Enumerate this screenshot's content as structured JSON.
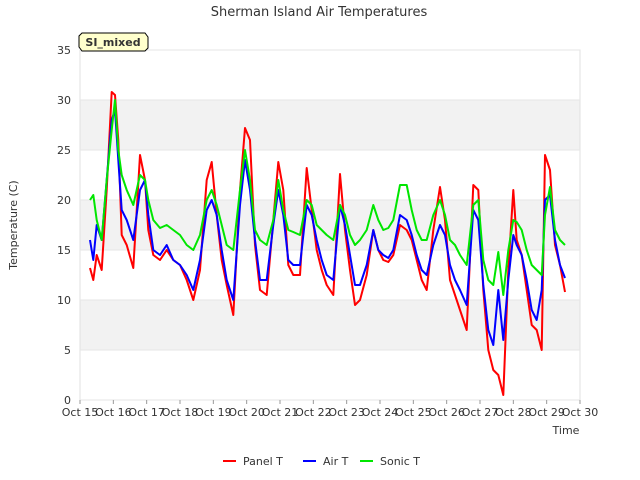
{
  "chart_data": {
    "type": "line",
    "title": "Sherman Island Air Temperatures",
    "xlabel": "Time",
    "ylabel": "Temperature (C)",
    "badge": "SI_mixed",
    "xlim": [
      0,
      15
    ],
    "ylim": [
      0,
      35
    ],
    "x_ticks": [
      "Oct 15",
      "Oct 16",
      "Oct 17",
      "Oct 18",
      "Oct 19",
      "Oct 20",
      "Oct 21",
      "Oct 22",
      "Oct 23",
      "Oct 24",
      "Oct 25",
      "Oct 26",
      "Oct 27",
      "Oct 28",
      "Oct 29",
      "Oct 30"
    ],
    "y_ticks": [
      0,
      5,
      10,
      15,
      20,
      25,
      30,
      35
    ],
    "grid": "horizontal bands",
    "legend_position": "bottom-center",
    "series": [
      {
        "name": "Panel T",
        "color": "#ff0000",
        "x": [
          0.3,
          0.4,
          0.5,
          0.65,
          0.8,
          0.95,
          1.05,
          1.15,
          1.25,
          1.4,
          1.6,
          1.8,
          1.95,
          2.05,
          2.2,
          2.4,
          2.6,
          2.8,
          3.0,
          3.2,
          3.4,
          3.6,
          3.8,
          3.95,
          4.1,
          4.25,
          4.4,
          4.6,
          4.8,
          4.95,
          5.1,
          5.25,
          5.4,
          5.6,
          5.8,
          5.95,
          6.1,
          6.25,
          6.4,
          6.6,
          6.8,
          6.95,
          7.1,
          7.25,
          7.4,
          7.6,
          7.8,
          7.95,
          8.1,
          8.25,
          8.4,
          8.6,
          8.8,
          8.95,
          9.1,
          9.25,
          9.4,
          9.6,
          9.8,
          9.95,
          10.1,
          10.25,
          10.4,
          10.6,
          10.8,
          10.95,
          11.1,
          11.25,
          11.4,
          11.6,
          11.8,
          11.95,
          12.1,
          12.25,
          12.4,
          12.55,
          12.7,
          12.85,
          13.0,
          13.1,
          13.25,
          13.4,
          13.55,
          13.7,
          13.85,
          13.95,
          14.1,
          14.25,
          14.4,
          14.55
        ],
        "y": [
          13.2,
          12.0,
          14.5,
          13.0,
          21.0,
          30.8,
          30.5,
          26.0,
          16.5,
          15.5,
          13.2,
          24.5,
          22.0,
          17.0,
          14.5,
          14.0,
          15.0,
          14.0,
          13.5,
          12.0,
          10.0,
          13.0,
          22.0,
          23.8,
          18.5,
          14.0,
          11.5,
          8.5,
          21.0,
          27.2,
          26.0,
          15.5,
          11.0,
          10.5,
          18.0,
          23.8,
          21.0,
          13.5,
          12.5,
          12.5,
          23.2,
          19.0,
          15.0,
          13.0,
          11.5,
          10.5,
          22.6,
          17.0,
          13.0,
          9.5,
          10.0,
          12.5,
          17.0,
          15.0,
          14.0,
          13.8,
          14.5,
          17.5,
          17.0,
          16.0,
          14.0,
          12.0,
          11.0,
          17.0,
          21.3,
          18.0,
          12.0,
          10.5,
          9.0,
          7.0,
          21.5,
          21.0,
          11.0,
          5.0,
          3.0,
          2.5,
          0.5,
          13.0,
          21.0,
          16.0,
          14.5,
          11.0,
          7.5,
          7.0,
          5.0,
          24.5,
          23.0,
          15.5,
          13.5,
          10.8
        ]
      },
      {
        "name": "Air T",
        "color": "#0000ff",
        "x": [
          0.3,
          0.4,
          0.5,
          0.65,
          0.8,
          0.95,
          1.05,
          1.15,
          1.25,
          1.4,
          1.6,
          1.8,
          1.95,
          2.05,
          2.2,
          2.4,
          2.6,
          2.8,
          3.0,
          3.2,
          3.4,
          3.6,
          3.8,
          3.95,
          4.1,
          4.25,
          4.4,
          4.6,
          4.8,
          4.95,
          5.1,
          5.25,
          5.4,
          5.6,
          5.8,
          5.95,
          6.1,
          6.25,
          6.4,
          6.6,
          6.8,
          6.95,
          7.1,
          7.25,
          7.4,
          7.6,
          7.8,
          7.95,
          8.1,
          8.25,
          8.4,
          8.6,
          8.8,
          8.95,
          9.1,
          9.25,
          9.4,
          9.6,
          9.8,
          9.95,
          10.1,
          10.25,
          10.4,
          10.6,
          10.8,
          10.95,
          11.1,
          11.25,
          11.4,
          11.6,
          11.8,
          11.95,
          12.1,
          12.25,
          12.4,
          12.55,
          12.7,
          12.85,
          13.0,
          13.1,
          13.25,
          13.4,
          13.55,
          13.7,
          13.85,
          13.95,
          14.1,
          14.25,
          14.4,
          14.55
        ],
        "y": [
          16.0,
          14.0,
          17.5,
          16.0,
          22.0,
          28.0,
          29.0,
          24.0,
          19.0,
          18.0,
          16.0,
          21.0,
          22.0,
          18.5,
          15.0,
          14.5,
          15.5,
          14.0,
          13.5,
          12.5,
          11.0,
          14.0,
          19.0,
          20.0,
          18.5,
          15.0,
          12.0,
          10.0,
          19.5,
          24.0,
          21.0,
          16.0,
          12.0,
          12.0,
          17.5,
          21.0,
          18.5,
          14.0,
          13.5,
          13.5,
          19.5,
          18.5,
          16.0,
          14.0,
          12.5,
          12.0,
          19.5,
          17.5,
          14.5,
          11.5,
          11.5,
          13.5,
          17.0,
          15.0,
          14.5,
          14.2,
          15.0,
          18.5,
          18.0,
          16.5,
          14.5,
          13.0,
          12.5,
          15.5,
          17.5,
          16.5,
          13.5,
          12.0,
          11.0,
          9.5,
          19.0,
          18.0,
          11.5,
          7.0,
          5.5,
          11.0,
          6.0,
          12.0,
          16.5,
          15.5,
          14.5,
          12.0,
          9.0,
          8.0,
          11.0,
          20.0,
          20.5,
          16.0,
          13.5,
          12.2
        ]
      },
      {
        "name": "Sonic T",
        "color": "#00e600",
        "x": [
          0.3,
          0.4,
          0.5,
          0.65,
          0.8,
          0.95,
          1.05,
          1.15,
          1.25,
          1.4,
          1.6,
          1.8,
          1.95,
          2.05,
          2.2,
          2.4,
          2.6,
          2.8,
          3.0,
          3.2,
          3.4,
          3.6,
          3.8,
          3.95,
          4.1,
          4.25,
          4.4,
          4.6,
          4.8,
          4.95,
          5.1,
          5.25,
          5.4,
          5.6,
          5.8,
          5.95,
          6.1,
          6.25,
          6.4,
          6.6,
          6.8,
          6.95,
          7.1,
          7.25,
          7.4,
          7.6,
          7.8,
          7.95,
          8.1,
          8.25,
          8.4,
          8.6,
          8.8,
          8.95,
          9.1,
          9.25,
          9.4,
          9.6,
          9.8,
          9.95,
          10.1,
          10.25,
          10.4,
          10.6,
          10.8,
          10.95,
          11.1,
          11.25,
          11.4,
          11.6,
          11.8,
          11.95,
          12.1,
          12.25,
          12.4,
          12.55,
          12.7,
          12.85,
          13.0,
          13.1,
          13.25,
          13.4,
          13.55,
          13.7,
          13.85,
          13.95,
          14.1,
          14.25,
          14.4,
          14.55
        ],
        "y": [
          20.0,
          20.5,
          18.0,
          16.0,
          22.0,
          27.0,
          30.0,
          25.0,
          22.5,
          21.0,
          19.5,
          22.5,
          22.0,
          20.0,
          18.0,
          17.2,
          17.5,
          17.0,
          16.5,
          15.5,
          15.0,
          16.5,
          20.0,
          21.0,
          19.5,
          17.5,
          15.5,
          15.0,
          21.0,
          25.0,
          22.0,
          17.0,
          16.0,
          15.5,
          18.0,
          22.0,
          19.0,
          17.0,
          16.8,
          16.5,
          20.0,
          19.5,
          17.5,
          17.0,
          16.5,
          16.0,
          19.5,
          18.5,
          16.5,
          15.5,
          16.0,
          17.0,
          19.5,
          18.0,
          17.0,
          17.2,
          18.0,
          21.5,
          21.5,
          19.0,
          17.0,
          16.0,
          16.0,
          18.5,
          20.0,
          18.5,
          16.0,
          15.5,
          14.5,
          13.5,
          19.5,
          20.0,
          14.0,
          12.0,
          11.5,
          14.8,
          10.5,
          15.0,
          18.0,
          17.8,
          17.0,
          15.0,
          13.5,
          13.0,
          12.5,
          18.5,
          21.3,
          17.0,
          16.0,
          15.5
        ]
      }
    ]
  }
}
